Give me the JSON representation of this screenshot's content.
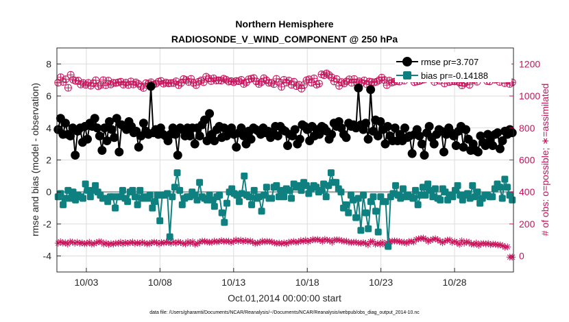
{
  "chart_data": {
    "type": "line",
    "title": "Northern Hemisphere",
    "subtitle": "RADIOSONDE_V_WIND_COMPONENT @ 250 hPa",
    "ylabel": "rmse and bias (model - observation)",
    "ylabel_right": "# of obs: o=possible; ∗=assimilated",
    "xlabel": "Oct.01,2014 00:00:00 start",
    "footnote": "data file: /Users/gharamti/Documents/NCAR/Reanalysis/~/Documents/NCAR/Reanalysis/webpub/obs_diag_output_2014-10.nc",
    "xlim": [
      1.0,
      32.0
    ],
    "ylim": [
      -5,
      9
    ],
    "ylim_right": [
      -100,
      1300
    ],
    "x_tick_values": [
      3,
      8,
      13,
      18,
      23,
      28
    ],
    "x_tick_labels": [
      "10/03",
      "10/08",
      "10/13",
      "10/18",
      "10/23",
      "10/28"
    ],
    "y_ticks": [
      "-4",
      "-2",
      "0",
      "2",
      "4",
      "6",
      "8"
    ],
    "y_tick_values": [
      -4,
      -2,
      0,
      2,
      4,
      6,
      8
    ],
    "y_right_ticks": [
      "0",
      "200",
      "400",
      "600",
      "800",
      "1000",
      "1200"
    ],
    "y_right_tick_values": [
      0,
      200,
      400,
      600,
      800,
      1000,
      1200
    ],
    "grid": true,
    "legend_placement": "top-right",
    "colors": {
      "rmse": "#000000",
      "bias": "#0f8080",
      "obs": "#c8125a",
      "zero_line": "#aaaaaa",
      "grid": "#dcdcdc",
      "axis": "#262626"
    },
    "series": [
      {
        "name": "rmse pr=3.707",
        "axis": "left",
        "values": [
          3.9,
          4.6,
          3.6,
          4.3,
          3.6,
          3.5,
          4.0,
          2.3,
          3.8,
          4.0,
          3.1,
          4.1,
          3.3,
          4.3,
          4.1,
          4.6,
          4.0,
          3.5,
          2.6,
          4.0,
          3.2,
          4.4,
          3.9,
          3.4,
          4.6,
          2.5,
          4.2,
          4.1,
          3.9,
          4.4,
          4.1,
          3.7,
          3.8,
          2.8,
          3.5,
          4.3,
          3.8,
          3.6,
          6.6,
          3.7,
          3.9,
          3.6,
          4.0,
          3.6,
          3.5,
          3.2,
          3.6,
          4.0,
          3.6,
          2.3,
          4.0,
          3.9,
          3.5,
          4.0,
          3.5,
          4.0,
          3.0,
          4.0,
          3.5,
          4.2,
          4.5,
          3.2,
          4.9,
          3.6,
          3.2,
          3.9,
          4.1,
          3.4,
          4.0,
          3.5,
          3.9,
          4.0,
          3.6,
          2.8,
          3.7,
          4.0,
          3.5,
          3.0,
          3.8,
          3.3,
          4.0,
          3.9,
          3.8,
          3.6,
          4.0,
          3.7,
          3.8,
          3.4,
          3.7,
          4.1,
          3.5,
          4.1,
          3.9,
          3.8,
          2.9,
          3.6,
          3.5,
          3.9,
          3.0,
          3.3,
          4.2,
          4.1,
          3.9,
          3.2,
          4.1,
          3.5,
          3.9,
          3.6,
          4.1,
          4.0,
          3.8,
          3.3,
          3.6,
          4.3,
          4.1,
          4.4,
          4.0,
          3.6,
          3.4,
          4.3,
          4.1,
          4.2,
          4.0,
          6.5,
          4.2,
          3.9,
          4.3,
          3.3,
          6.4,
          3.8,
          4.5,
          3.5,
          4.4,
          3.9,
          3.0,
          4.1,
          3.5,
          3.2,
          4.0,
          3.2,
          3.6,
          3.2,
          4.0,
          3.4,
          3.5,
          2.4,
          3.6,
          3.9,
          3.5,
          3.0,
          2.3,
          3.7,
          4.1,
          3.4,
          3.0,
          3.6,
          3.9,
          3.8,
          2.5,
          3.6,
          4.0,
          3.7,
          3.5,
          2.9,
          3.8,
          4.1,
          2.8,
          3.9,
          3.3,
          2.6,
          3.0,
          2.6,
          2.5,
          3.5,
          3.1,
          2.9,
          3.6,
          3.2,
          2.9,
          3.6,
          3.7,
          2.7,
          3.2,
          3.8,
          3.6,
          3.9,
          3.7
        ]
      },
      {
        "name": "bias pr=-0.14188",
        "axis": "left",
        "values": [
          -0.3,
          -0.1,
          -0.8,
          -0.4,
          0.1,
          -0.4,
          0.0,
          -0.5,
          -0.2,
          -0.3,
          -0.4,
          0.5,
          0.1,
          -0.3,
          0.1,
          0.4,
          0.0,
          -0.2,
          -0.4,
          -0.4,
          -0.6,
          -0.3,
          -0.3,
          -1.0,
          -0.3,
          -0.3,
          0.1,
          -0.4,
          -0.6,
          0.0,
          0.1,
          -0.3,
          -0.8,
          0.1,
          -0.4,
          -0.3,
          -0.4,
          -0.2,
          -1.0,
          -0.6,
          -0.2,
          -1.8,
          -0.2,
          -0.2,
          -0.1,
          -2.8,
          -0.3,
          0.3,
          1.2,
          0.1,
          -0.8,
          -0.4,
          -0.3,
          -0.3,
          0.0,
          -0.2,
          -0.5,
          0.6,
          -0.3,
          -0.4,
          -0.5,
          -0.2,
          -0.5,
          -0.9,
          -0.3,
          -0.2,
          -1.3,
          -1.9,
          -0.7,
          0.0,
          0.2,
          -0.1,
          -0.2,
          -0.6,
          -0.1,
          1.0,
          -0.2,
          -0.3,
          -0.8,
          0.1,
          -0.4,
          -0.3,
          -1.2,
          -0.2,
          0.3,
          -0.4,
          -0.4,
          0.3,
          0.4,
          -0.3,
          0.1,
          -0.3,
          0.2,
          0.1,
          -0.4,
          0.5,
          0.3,
          0.4,
          0.1,
          0.6,
          0.4,
          -0.1,
          0.2,
          0.4,
          0.3,
          0.0,
          0.1,
          0.5,
          -0.3,
          0.4,
          1.2,
          0.6,
          0.6,
          0.2,
          0.0,
          -1.0,
          -0.8,
          -1.3,
          -0.2,
          -0.5,
          -1.6,
          -0.4,
          -2.4,
          -0.2,
          -1.3,
          -2.3,
          -0.6,
          -0.3,
          -1.2,
          -2.5,
          -0.3,
          -0.6,
          -0.6,
          -3.4,
          -0.3,
          -0.1,
          0.4,
          -0.2,
          -0.4,
          0.2,
          -0.3,
          -0.2,
          -0.3,
          -0.4,
          0.1,
          -0.8,
          -0.2,
          0.3,
          -0.2,
          0.5,
          0.1,
          -0.3,
          0.2,
          -0.4,
          -0.5,
          0.2,
          0.0,
          -0.5,
          -0.2,
          -0.3,
          0.1,
          0.4,
          -0.2,
          -0.5,
          -0.2,
          -0.1,
          -0.4,
          0.4,
          -0.3,
          0.0,
          -0.7,
          -0.4,
          -0.2,
          -0.2,
          -0.3,
          -0.3,
          0.2,
          0.5,
          0.3,
          -0.4,
          0.8,
          0.3,
          -0.2,
          -0.5
        ]
      },
      {
        "name": "possible",
        "axis": "right",
        "marker": "circle-plus",
        "values": [
          1083,
          1117,
          1088,
          1104,
          1051,
          1132,
          1101,
          1094,
          1096,
          1072,
          1081,
          1070,
          1082,
          1064,
          1080,
          1098,
          1061,
          1069,
          1099,
          1067,
          1096,
          1072,
          1082,
          1081,
          1085,
          1089,
          1071,
          1083,
          1069,
          1091,
          1072,
          1085,
          1075,
          1060,
          1050,
          1080,
          1076,
          1086,
          1072,
          1077,
          1089,
          1094,
          1077,
          1084,
          1079,
          1081,
          1081,
          1092,
          1068,
          1081,
          1106,
          1100,
          1088,
          1107,
          1081,
          1068,
          1089,
          1097,
          1086,
          1120,
          1109,
          1093,
          1110,
          1097,
          1098,
          1096,
          1108,
          1101,
          1090,
          1093,
          1086,
          1094,
          1092,
          1101,
          1075,
          1085,
          1104,
          1108,
          1112,
          1091,
          1075,
          1086,
          1111,
          1098,
          1082,
          1082,
          1074,
          1107,
          1087,
          1057,
          1101,
          1084,
          1096,
          1070,
          1089,
          1062,
          1070,
          1046,
          1069,
          1098,
          1104,
          1083,
          1110,
          1071,
          1077,
          1135,
          1130,
          1141,
          1131,
          1117,
          1091,
          1106,
          1063,
          1087,
          1078,
          1091,
          1104,
          1082,
          1106,
          1083,
          1092,
          1083,
          1097,
          1073,
          1090,
          1087,
          1085,
          1089,
          1099,
          1115,
          1100,
          1068,
          1096,
          1084,
          1089,
          1093,
          1090,
          1111,
          1096,
          1112,
          1114,
          1107,
          1086,
          1090,
          1093,
          1100,
          1103,
          1115,
          1114,
          1107,
          1088,
          1105,
          1095,
          1119,
          1078,
          1117,
          1087,
          1092,
          1091,
          1093,
          1083,
          1066,
          1079,
          1089,
          1070,
          1100,
          1101,
          1089,
          1111,
          1113,
          1112,
          1093,
          1091,
          1109,
          1102,
          1105,
          1088,
          1119,
          1080,
          1106,
          1075,
          1085
        ]
      },
      {
        "name": "assimilated",
        "axis": "right",
        "marker": "asterisk",
        "values": [
          80,
          89,
          81,
          83,
          75,
          88,
          87,
          80,
          86,
          80,
          82,
          77,
          79,
          86,
          75,
          77,
          84,
          89,
          88,
          75,
          81,
          72,
          77,
          75,
          80,
          79,
          86,
          76,
          84,
          80,
          83,
          87,
          78,
          82,
          79,
          86,
          80,
          77,
          77,
          84,
          86,
          84,
          76,
          84,
          82,
          86,
          84,
          80,
          87,
          81,
          87,
          84,
          78,
          76,
          89,
          80,
          89,
          74,
          77,
          88,
          93,
          91,
          88,
          86,
          85,
          93,
          89,
          90,
          96,
          91,
          92,
          93,
          85,
          91,
          100,
          92,
          99,
          91,
          96,
          91,
          94,
          87,
          78,
          82,
          84,
          93,
          89,
          91,
          90,
          88,
          82,
          79,
          81,
          78,
          82,
          76,
          86,
          87,
          91,
          86,
          88,
          96,
          92,
          99,
          90,
          96,
          103,
          101,
          103,
          99,
          91,
          104,
          98,
          97,
          86,
          100,
          101,
          100,
          95,
          92,
          93,
          86,
          85,
          86,
          86,
          81,
          80,
          83,
          80,
          70,
          90,
          91,
          74,
          79,
          75,
          85,
          70,
          83,
          91,
          93,
          94,
          93,
          90,
          86,
          86,
          79,
          90,
          91,
          88,
          103,
          107,
          110,
          112,
          104,
          92,
          98,
          105,
          108,
          101,
          93,
          83,
          93,
          99,
          100,
          85,
          91,
          84,
          73,
          95,
          80,
          88,
          86,
          75,
          73,
          81,
          67,
          77,
          78,
          76,
          78,
          71,
          74,
          73,
          69,
          69,
          65,
          55,
          57,
          -7,
          -7
        ]
      }
    ]
  }
}
